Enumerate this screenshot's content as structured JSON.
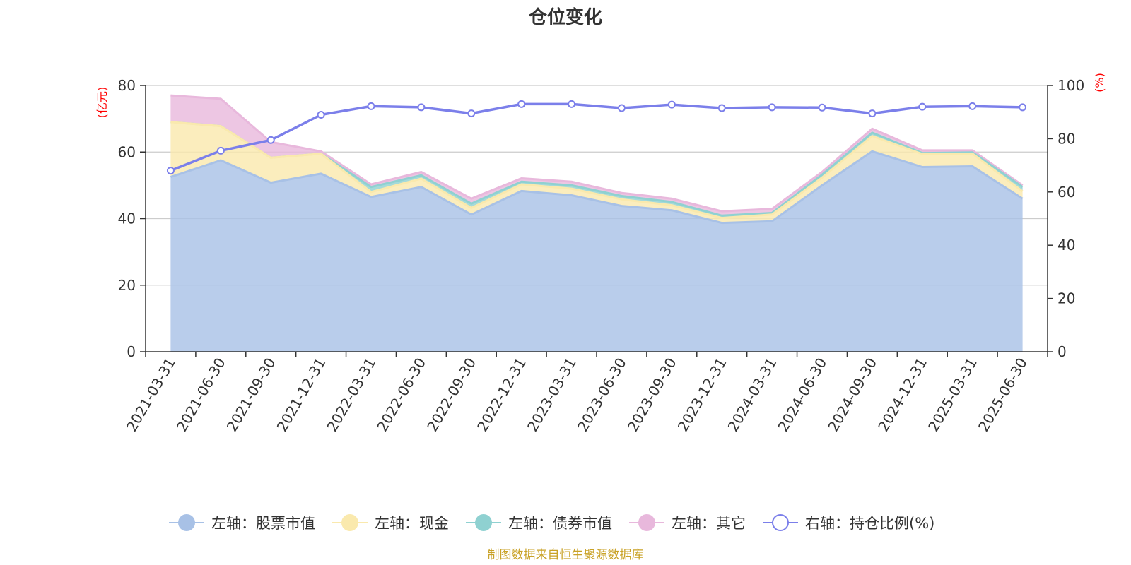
{
  "chart_data": {
    "type": "area",
    "title": "仓位变化",
    "x": [
      "2021-03-31",
      "2021-06-30",
      "2021-09-30",
      "2021-12-31",
      "2022-03-31",
      "2022-06-30",
      "2022-09-30",
      "2022-12-31",
      "2023-03-31",
      "2023-06-30",
      "2023-09-30",
      "2023-12-31",
      "2024-03-31",
      "2024-06-30",
      "2024-09-30",
      "2024-12-31",
      "2025-03-31",
      "2025-06-30"
    ],
    "left_axis": {
      "unit": "(亿元)",
      "ylim": [
        0,
        80
      ],
      "ticks": [
        "0",
        "20",
        "40",
        "60",
        "80"
      ]
    },
    "right_axis": {
      "unit": "(%)",
      "ylim": [
        0,
        100
      ],
      "ticks": [
        "0",
        "20",
        "40",
        "60",
        "80",
        "100"
      ]
    },
    "series": [
      {
        "name": "左轴：股票市值",
        "type": "area",
        "axis": "left",
        "stack": true,
        "color": "#a8c1e6",
        "values": [
          52.5,
          57.5,
          50.8,
          53.5,
          46.5,
          49.5,
          41.2,
          48.3,
          47.0,
          43.8,
          42.5,
          38.7,
          39.2,
          50.0,
          60.2,
          55.5,
          55.7,
          46.0
        ]
      },
      {
        "name": "左轴：现金",
        "type": "area",
        "axis": "left",
        "stack": true,
        "color": "#fae9ad",
        "values": [
          16.5,
          10.3,
          7.5,
          6.0,
          1.5,
          2.5,
          2.0,
          2.0,
          2.0,
          2.0,
          1.5,
          1.5,
          2.0,
          2.3,
          4.6,
          3.9,
          3.8,
          2.2
        ]
      },
      {
        "name": "左轴：债券市值",
        "type": "area",
        "axis": "left",
        "stack": true,
        "color": "#8fd1d1",
        "values": [
          0,
          0,
          0,
          0,
          1.5,
          1.0,
          1.3,
          0.8,
          1.0,
          1.0,
          1.0,
          0.7,
          0.5,
          0.9,
          1.0,
          0.3,
          0.4,
          1.3
        ]
      },
      {
        "name": "左轴：其它",
        "type": "area",
        "axis": "left",
        "stack": true,
        "color": "#e8b8dc",
        "values": [
          8.0,
          8.2,
          4.7,
          0.7,
          0.8,
          1.0,
          1.5,
          1.0,
          1.1,
          0.9,
          1.0,
          1.3,
          1.2,
          0.8,
          1.2,
          0.8,
          0.6,
          0.5
        ]
      },
      {
        "name": "右轴：持仓比例(%)",
        "type": "line",
        "axis": "right",
        "color": "#7b7fea",
        "values": [
          68.0,
          75.5,
          79.5,
          89.0,
          92.2,
          91.8,
          89.5,
          93.0,
          93.0,
          91.5,
          92.8,
          91.5,
          91.8,
          91.7,
          89.5,
          92.0,
          92.2,
          91.8
        ]
      }
    ],
    "grid": true,
    "legend_position": "bottom"
  },
  "footer": {
    "source": "制图数据来自恒生聚源数据库"
  }
}
